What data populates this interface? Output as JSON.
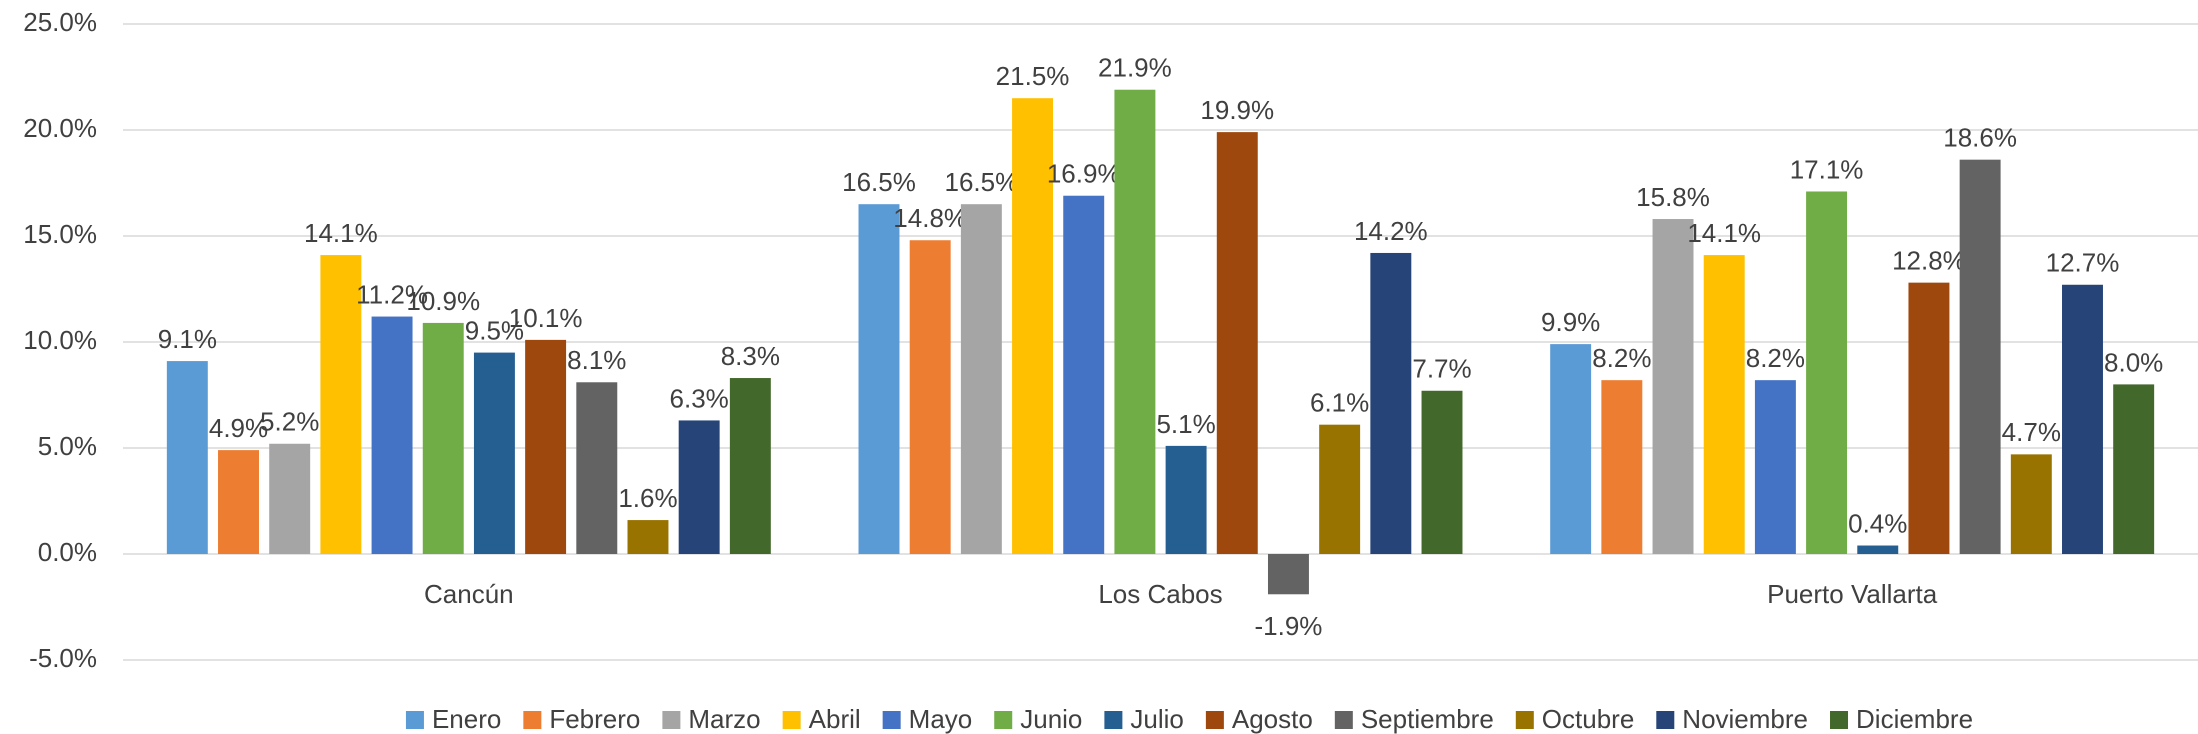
{
  "chart_data": {
    "type": "bar",
    "categories": [
      "Cancún",
      "Los Cabos",
      "Puerto Vallarta"
    ],
    "series": [
      {
        "name": "Enero",
        "color": "#5b9bd5",
        "values": [
          9.1,
          16.5,
          9.9
        ],
        "value_labels": [
          "9.1%",
          "16.5%",
          "9.9%"
        ]
      },
      {
        "name": "Febrero",
        "color": "#ed7d31",
        "values": [
          4.9,
          14.8,
          8.2
        ],
        "value_labels": [
          "4.9%",
          "14.8%",
          "8.2%"
        ]
      },
      {
        "name": "Marzo",
        "color": "#a5a5a5",
        "values": [
          5.2,
          16.5,
          15.8
        ],
        "value_labels": [
          "5.2%",
          "16.5%",
          "15.8%"
        ]
      },
      {
        "name": "Abril",
        "color": "#ffc000",
        "values": [
          14.1,
          21.5,
          14.1
        ],
        "value_labels": [
          "14.1%",
          "21.5%",
          "14.1%"
        ]
      },
      {
        "name": "Mayo",
        "color": "#4472c4",
        "values": [
          11.2,
          16.9,
          8.2
        ],
        "value_labels": [
          "11.2%",
          "16.9%",
          "8.2%"
        ]
      },
      {
        "name": "Junio",
        "color": "#70ad47",
        "values": [
          10.9,
          21.9,
          17.1
        ],
        "value_labels": [
          "10.9%",
          "21.9%",
          "17.1%"
        ]
      },
      {
        "name": "Julio",
        "color": "#255e91",
        "values": [
          9.5,
          5.1,
          0.4
        ],
        "value_labels": [
          "9.5%",
          "5.1%",
          "0.4%"
        ]
      },
      {
        "name": "Agosto",
        "color": "#9e480e",
        "values": [
          10.1,
          19.9,
          12.8
        ],
        "value_labels": [
          "10.1%",
          "19.9%",
          "12.8%"
        ]
      },
      {
        "name": "Septiembre",
        "color": "#636363",
        "values": [
          8.1,
          -1.9,
          18.6
        ],
        "value_labels": [
          "8.1%",
          "-1.9%",
          "18.6%"
        ]
      },
      {
        "name": "Octubre",
        "color": "#997300",
        "values": [
          1.6,
          6.1,
          4.7
        ],
        "value_labels": [
          "1.6%",
          "6.1%",
          "4.7%"
        ]
      },
      {
        "name": "Noviembre",
        "color": "#264478",
        "values": [
          6.3,
          14.2,
          12.7
        ],
        "value_labels": [
          "6.3%",
          "14.2%",
          "12.7%"
        ]
      },
      {
        "name": "Diciembre",
        "color": "#43682b",
        "values": [
          8.3,
          7.7,
          8.0
        ],
        "value_labels": [
          "8.3%",
          "7.7%",
          "8.0%"
        ]
      }
    ],
    "ylim": [
      -5,
      25
    ],
    "yticks": [
      {
        "value": -5,
        "label": "-5.0%"
      },
      {
        "value": 0,
        "label": "0.0%"
      },
      {
        "value": 5,
        "label": "5.0%"
      },
      {
        "value": 10,
        "label": "10.0%"
      },
      {
        "value": 15,
        "label": "15.0%"
      },
      {
        "value": 20,
        "label": "20.0%"
      },
      {
        "value": 25,
        "label": "25.0%"
      }
    ],
    "grid": true,
    "legend": "bottom"
  }
}
